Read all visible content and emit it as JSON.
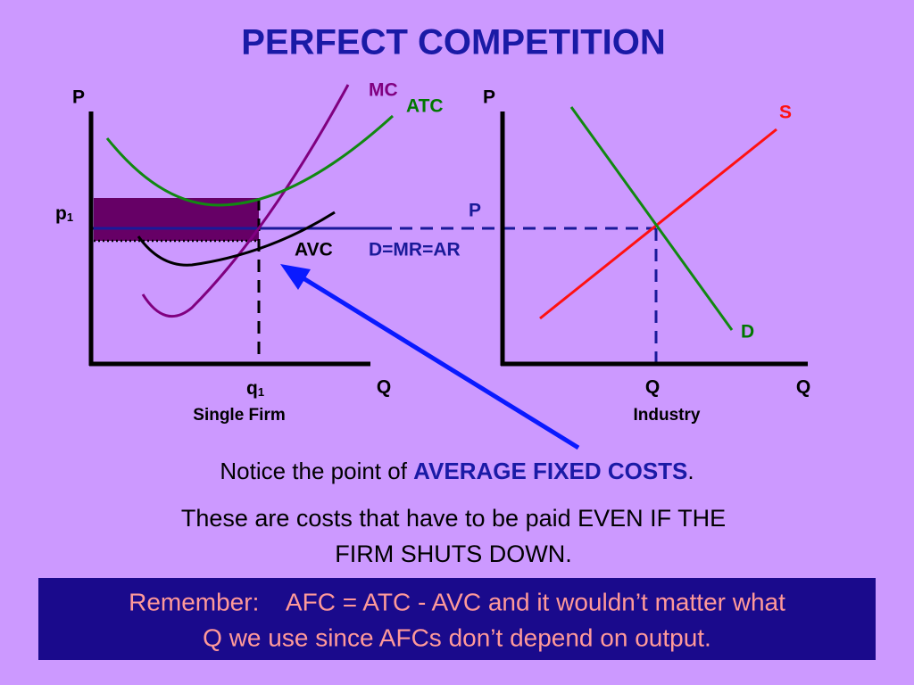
{
  "title": "PERFECT COMPETITION",
  "firm": {
    "y_axis": "P",
    "x_axis": "Q",
    "price": {
      "text": "p",
      "subscript": "1"
    },
    "quantity": {
      "text": "q",
      "subscript": "1"
    },
    "curves": {
      "mc": "MC",
      "atc": "ATC",
      "avc": "AVC",
      "demand": "D=MR=AR"
    },
    "caption": "Single Firm"
  },
  "industry": {
    "y_axis": "P",
    "x_axis": "Q",
    "price": "P",
    "quantity": "Q",
    "supply": "S",
    "demand": "D",
    "caption": "Industry"
  },
  "notice": {
    "before": "Notice the point of ",
    "highlight": "AVERAGE FIXED COSTS",
    "after": "."
  },
  "explanation": [
    "These are costs that have to be paid EVEN IF THE",
    "FIRM SHUTS DOWN."
  ],
  "remember": [
    "Remember:    AFC = ATC - AVC and it wouldn’t matter what",
    "Q we use since AFCs don’t depend on output."
  ]
}
